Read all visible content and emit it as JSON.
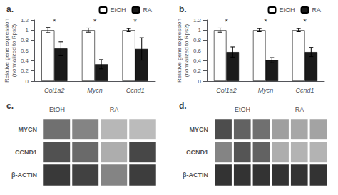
{
  "chart_data": [
    {
      "type": "bar",
      "title": "a.",
      "categories": [
        "Col1a2",
        "Mycn",
        "Ccnd1"
      ],
      "series": [
        {
          "name": "EtOH",
          "color": "#ffffff",
          "values": [
            1.0,
            1.0,
            1.0
          ],
          "errors": [
            0.05,
            0.04,
            0.03
          ]
        },
        {
          "name": "RA",
          "color": "#1a1a1a",
          "values": [
            0.64,
            0.33,
            0.63
          ],
          "errors": [
            0.13,
            0.09,
            0.22
          ]
        }
      ],
      "ylabel": "Relative gene expression\n(normalized to Rps2)",
      "ylim": [
        0,
        1.2
      ],
      "yticks": [
        0,
        0.2,
        0.4,
        0.6,
        0.8,
        1,
        1.2
      ],
      "legend": "upper right",
      "annotations": [
        {
          "x": "Col1a2",
          "y": 1.08,
          "text": "*"
        },
        {
          "x": "Mycn",
          "y": 1.08,
          "text": "*"
        },
        {
          "x": "Ccnd1",
          "y": 1.08,
          "text": "*"
        }
      ]
    },
    {
      "type": "bar",
      "title": "b.",
      "categories": [
        "Col1a2",
        "Mycn",
        "Ccnd1"
      ],
      "series": [
        {
          "name": "EtOH",
          "color": "#ffffff",
          "values": [
            1.0,
            1.0,
            1.0
          ],
          "errors": [
            0.04,
            0.03,
            0.03
          ]
        },
        {
          "name": "RA",
          "color": "#1a1a1a",
          "values": [
            0.57,
            0.41,
            0.57
          ],
          "errors": [
            0.1,
            0.05,
            0.09
          ]
        }
      ],
      "ylabel": "Relative gene expression\n(normalized to Rps2)",
      "ylim": [
        0,
        1.2
      ],
      "yticks": [
        0,
        0.2,
        0.4,
        0.6,
        0.8,
        1,
        1.2
      ],
      "legend": "upper right",
      "annotations": [
        {
          "x": "Col1a2",
          "y": 1.08,
          "text": "*"
        },
        {
          "x": "Mycn",
          "y": 1.08,
          "text": "*"
        },
        {
          "x": "Ccnd1",
          "y": 1.08,
          "text": "*"
        }
      ]
    },
    {
      "type": "heatmap",
      "title": "c.",
      "categories": [
        "EtOH",
        null,
        "RA",
        null
      ],
      "rows": [
        "MYCN",
        "CCND1",
        "β-ACTIN"
      ],
      "cells": [
        [
          0.45,
          0.55,
          0.8,
          0.82
        ],
        [
          0.3,
          0.42,
          0.75,
          0.25
        ],
        [
          0.18,
          0.22,
          0.55,
          0.2
        ]
      ],
      "zlim": [
        0,
        1
      ]
    },
    {
      "type": "heatmap",
      "title": "d.",
      "categories": [
        null,
        "EtOH",
        null,
        null,
        "RA",
        null
      ],
      "rows": [
        "MYCN",
        "CCND1",
        "β-ACTIN"
      ],
      "cells": [
        [
          0.28,
          0.38,
          0.45,
          0.68,
          0.72,
          0.7
        ],
        [
          0.55,
          0.32,
          0.38,
          0.75,
          0.78,
          0.78
        ],
        [
          0.15,
          0.15,
          0.15,
          0.15,
          0.15,
          0.15
        ]
      ],
      "zlim": [
        0,
        1
      ]
    }
  ]
}
